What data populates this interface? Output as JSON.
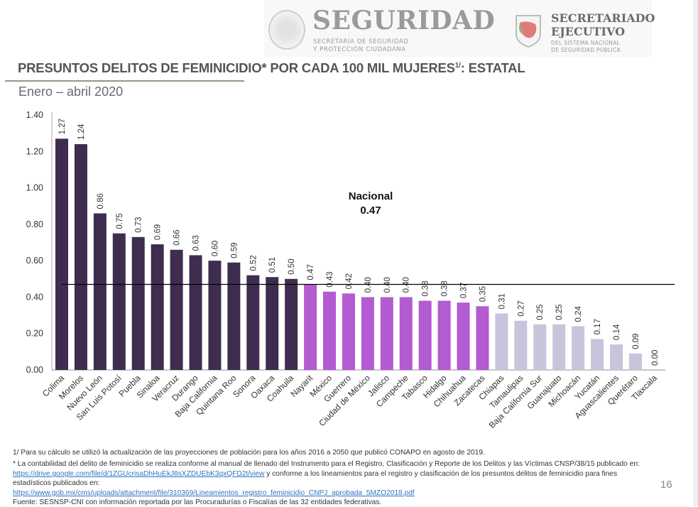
{
  "header": {
    "logo_left_title": "SEGURIDAD",
    "logo_left_sub1": "SECRETARÍA DE SEGURIDAD",
    "logo_left_sub2": "Y PROTECCIÓN CIUDADANA",
    "logo_right_title1": "SECRETARIADO",
    "logo_right_title2": "EJECUTIVO",
    "logo_right_sub1": "DEL SISTEMA NACIONAL",
    "logo_right_sub2": "DE SEGURIDAD PÚBLICA"
  },
  "page": {
    "title_main": "PRESUNTOS DELITOS DE FEMINICIDIO* POR CADA 100 MIL MUJERES",
    "title_sup": "1/",
    "title_end": ": ESTATAL",
    "subtitle": "Enero – abril 2020",
    "page_number": "16"
  },
  "chart_data": {
    "type": "bar",
    "title": "PRESUNTOS DELITOS DE FEMINICIDIO* POR CADA 100 MIL MUJERES1/: ESTATAL",
    "subtitle": "Enero – abril 2020",
    "xlabel": "",
    "ylabel": "",
    "ylim": [
      0,
      1.4
    ],
    "yticks": [
      "0.00",
      "0.20",
      "0.40",
      "0.60",
      "0.80",
      "1.00",
      "1.20",
      "1.40"
    ],
    "grid": false,
    "categories": [
      "Colima",
      "Morelos",
      "Nuevo León",
      "San Luis Potosí",
      "Puebla",
      "Sinaloa",
      "Veracruz",
      "Durango",
      "Baja California",
      "Quintana Roo",
      "Sonora",
      "Oaxaca",
      "Coahuila",
      "Nayarit",
      "México",
      "Guerrero",
      "Ciudad de México",
      "Jalisco",
      "Campeche",
      "Tabasco",
      "Hidalgo",
      "Chihuahua",
      "Zacatecas",
      "Chiapas",
      "Tamaulipas",
      "Baja California Sur",
      "Guanajuato",
      "Michoacán",
      "Yucatán",
      "Aguascalientes",
      "Querétaro",
      "Tlaxcala"
    ],
    "values": [
      1.27,
      1.24,
      0.86,
      0.75,
      0.73,
      0.69,
      0.66,
      0.63,
      0.6,
      0.59,
      0.52,
      0.51,
      0.5,
      0.47,
      0.43,
      0.42,
      0.4,
      0.4,
      0.4,
      0.38,
      0.38,
      0.37,
      0.35,
      0.31,
      0.27,
      0.25,
      0.25,
      0.24,
      0.17,
      0.14,
      0.09,
      0.0
    ],
    "value_labels": [
      "1.27",
      "1.24",
      "0.86",
      "0.75",
      "0.73",
      "0.69",
      "0.66",
      "0.63",
      "0.60",
      "0.59",
      "0.52",
      "0.51",
      "0.50",
      "0.47",
      "0.43",
      "0.42",
      "0.40",
      "0.40",
      "0.40",
      "0.38",
      "0.38",
      "0.37",
      "0.35",
      "0.31",
      "0.27",
      "0.25",
      "0.25",
      "0.24",
      "0.17",
      "0.14",
      "0.09",
      "0.00"
    ],
    "groups": [
      "high",
      "high",
      "high",
      "high",
      "high",
      "high",
      "high",
      "high",
      "high",
      "high",
      "high",
      "high",
      "high",
      "mid",
      "mid",
      "mid",
      "mid",
      "mid",
      "mid",
      "mid",
      "mid",
      "mid",
      "mid",
      "low",
      "low",
      "low",
      "low",
      "low",
      "low",
      "low",
      "low",
      "low"
    ],
    "group_colors": {
      "high": "#3e2d4f",
      "mid": "#b35bd1",
      "low": "#c9c3dc"
    },
    "reference_line": {
      "label": "Nacional",
      "value": 0.47,
      "value_label": "0.47",
      "color": "#000000"
    }
  },
  "footnotes": {
    "fn1": "1/ Para su cálculo se utilizó la actualización de las proyecciones de población para los años 2016 a 2050 que publicó CONAPO en agosto de 2019.",
    "fn2_a": "* La contabilidad del delito de feminicidio se realiza conforme al manual de llenado del Instrumento para el Registro, Clasificación y Reporte de los Delitos y las Víctimas CNSP/38/15 publicado en: ",
    "fn2_link1": "https://drive.google.com/file/d/1ZGUcrisaDhHuEkJ8sXZDUEbK3qxQFD2t/view",
    "fn2_b": " y conforme a los lineamientos para el registro y clasificación de los presuntos delitos de feminicidio para fines estadísticos publicados en:",
    "fn2_link2": "https://www.gob.mx/cms/uploads/attachment/file/310369/Lineamientos_registro_feminicidio_CNPJ_aprobada_5MZO2018.pdf",
    "source": "Fuente: SESNSP-CNI con información reportada por las Procuradurías o Fiscalías de las 32 entidades federativas."
  }
}
